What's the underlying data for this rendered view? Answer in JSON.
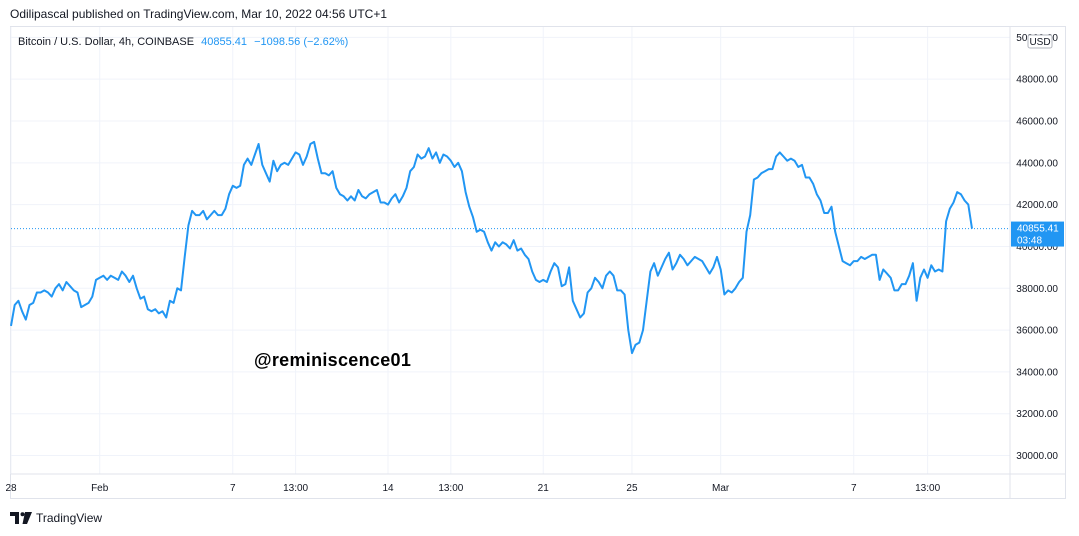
{
  "header": {
    "publish_text": "Odilipascal published on TradingView.com, Mar 10, 2022 04:56 UTC+1"
  },
  "legend": {
    "symbol": "Bitcoin / U.S. Dollar, 4h, COINBASE",
    "last_price": "40855.41",
    "change": "−1098.56 (−2.62%)"
  },
  "watermark": "@reminiscence01",
  "footer": {
    "brand": "TradingView",
    "logo_icon": "tradingview-logo-icon"
  },
  "colors": {
    "line": "#2196f3",
    "grid": "#f0f3fa",
    "axis_border": "#e0e3eb",
    "price_tag_bg": "#2196f3"
  },
  "chart_data": {
    "type": "line",
    "title": "Bitcoin / U.S. Dollar, 4h, COINBASE",
    "currency_label": "USD",
    "ylim": [
      29500,
      50400
    ],
    "y_ticks": [
      30000,
      32000,
      34000,
      36000,
      38000,
      40000,
      42000,
      44000,
      46000,
      48000,
      50000
    ],
    "y_tick_labels": [
      "30000.00",
      "32000.00",
      "34000.00",
      "36000.00",
      "38000.00",
      "40000.00",
      "42000.00",
      "44000.00",
      "46000.00",
      "48000.00",
      "50000.00"
    ],
    "x_ticks": [
      {
        "label": "28",
        "index": 0
      },
      {
        "label": "Feb",
        "index": 24
      },
      {
        "label": "7",
        "index": 60
      },
      {
        "label": "13:00",
        "index": 77
      },
      {
        "label": "14",
        "index": 102
      },
      {
        "label": "13:00",
        "index": 119
      },
      {
        "label": "21",
        "index": 144
      },
      {
        "label": "25",
        "index": 168
      },
      {
        "label": "Mar",
        "index": 192
      },
      {
        "label": "7",
        "index": 228
      },
      {
        "label": "13:00",
        "index": 248
      }
    ],
    "grid": true,
    "last_value": 40855.41,
    "last_value_label": "40855.41",
    "countdown_label": "03:48",
    "series": [
      {
        "values": [
          36200,
          37200,
          37400,
          36900,
          36500,
          37200,
          37300,
          37800,
          37800,
          37900,
          37800,
          37600,
          38000,
          38200,
          37900,
          38300,
          38100,
          37900,
          37800,
          37100,
          37200,
          37300,
          37600,
          38400,
          38500,
          38600,
          38400,
          38600,
          38500,
          38400,
          38800,
          38600,
          38300,
          38600,
          38000,
          37500,
          37600,
          37000,
          36900,
          37000,
          36800,
          36900,
          36600,
          37400,
          37300,
          38000,
          37900,
          39500,
          41000,
          41700,
          41500,
          41500,
          41700,
          41300,
          41500,
          41700,
          41500,
          41500,
          41800,
          42500,
          42900,
          42800,
          42900,
          43900,
          44200,
          43900,
          44400,
          44900,
          43900,
          43500,
          43100,
          44100,
          43600,
          43900,
          44000,
          43900,
          44200,
          44500,
          44400,
          43900,
          44300,
          44900,
          45000,
          44200,
          43500,
          43500,
          43400,
          43600,
          42800,
          42500,
          42400,
          42200,
          42400,
          42200,
          42700,
          42400,
          42300,
          42500,
          42600,
          42700,
          42100,
          42100,
          42000,
          42300,
          42500,
          42100,
          42400,
          42800,
          43600,
          43800,
          44400,
          44200,
          44300,
          44700,
          44200,
          44500,
          44000,
          44400,
          44300,
          44100,
          43800,
          44000,
          43600,
          42600,
          41900,
          41400,
          40700,
          40800,
          40700,
          40200,
          39800,
          40200,
          40000,
          40200,
          40100,
          39900,
          40300,
          39800,
          39900,
          39600,
          39400,
          38800,
          38400,
          38300,
          38400,
          38300,
          38800,
          39200,
          39000,
          38100,
          38200,
          39000,
          37400,
          37000,
          36600,
          36800,
          37800,
          38000,
          38500,
          38300,
          38000,
          38600,
          38800,
          38600,
          37900,
          37900,
          37700,
          36000,
          34900,
          35300,
          35400,
          36000,
          37400,
          38800,
          39200,
          38600,
          39000,
          39400,
          39700,
          38900,
          39200,
          39600,
          39400,
          39100,
          39300,
          39500,
          39400,
          39300,
          39000,
          38700,
          39000,
          39500,
          38900,
          37700,
          37900,
          37800,
          38000,
          38300,
          38500,
          40700,
          41500,
          43200,
          43300,
          43500,
          43600,
          43700,
          43700,
          44300,
          44500,
          44300,
          44100,
          44200,
          44100,
          43800,
          43900,
          43300,
          43300,
          43000,
          42500,
          42200,
          41600,
          41600,
          41900,
          40700,
          40000,
          39300,
          39200,
          39100,
          39300,
          39300,
          39500,
          39400,
          39500,
          39600,
          39600,
          38400,
          38900,
          38700,
          38500,
          37900,
          37900,
          38200,
          38200,
          38600,
          39200,
          37400,
          38500,
          38900,
          38500,
          39100,
          38800,
          38900,
          38800,
          41200,
          41800,
          42100,
          42600,
          42500,
          42200,
          42000,
          40855.41
        ]
      }
    ]
  }
}
